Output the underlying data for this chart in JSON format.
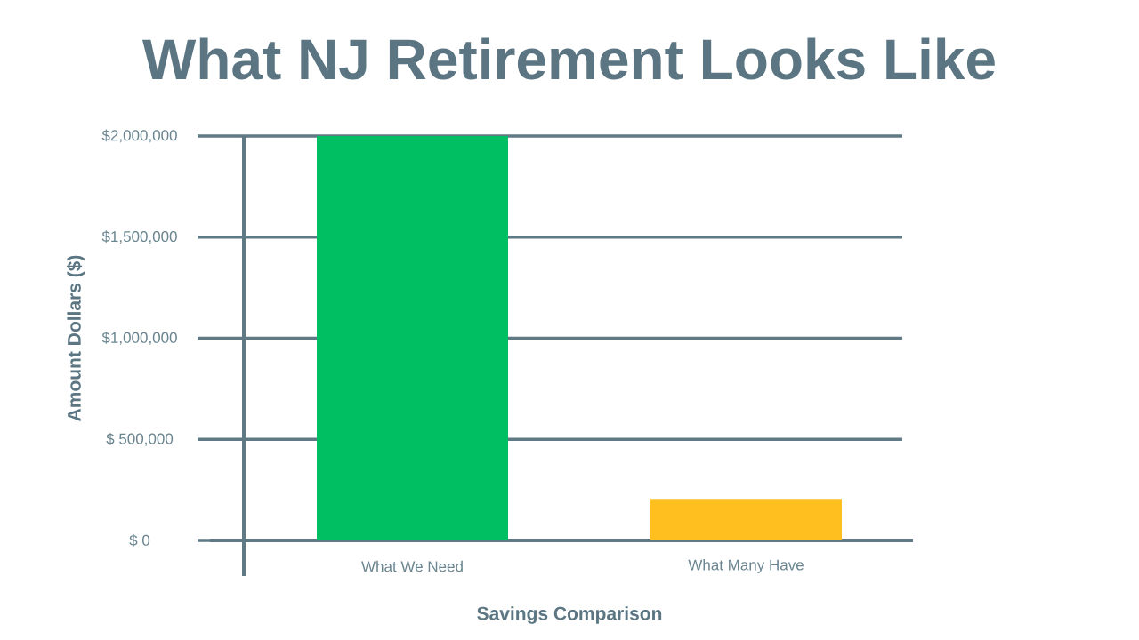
{
  "chart_data": {
    "type": "bar",
    "title": "What NJ Retirement Looks Like",
    "xlabel": "Savings Comparison",
    "ylabel": "Amount Dollars ($)",
    "categories": [
      "What We Need",
      "What Many Have"
    ],
    "values": [
      2000000,
      205000
    ],
    "colors": [
      "#00bf63",
      "#ffbf1f"
    ],
    "ylim": [
      0,
      2000000
    ],
    "yticks": [
      {
        "value": 0,
        "label": "$ 0"
      },
      {
        "value": 500000,
        "label": "$ 500,000"
      },
      {
        "value": 1000000,
        "label": "$1,000,000"
      },
      {
        "value": 1500000,
        "label": "$1,500,000"
      },
      {
        "value": 2000000,
        "label": "$2,000,000"
      }
    ],
    "grid": "y"
  }
}
